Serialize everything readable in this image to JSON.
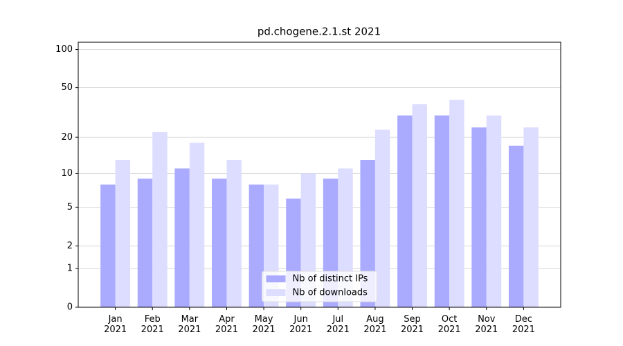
{
  "chart_data": {
    "type": "bar",
    "title": "pd.chogene.2.1.st 2021",
    "categories": [
      "Jan\n2021",
      "Feb\n2021",
      "Mar\n2021",
      "Apr\n2021",
      "May\n2021",
      "Jun\n2021",
      "Jul\n2021",
      "Aug\n2021",
      "Sep\n2021",
      "Oct\n2021",
      "Nov\n2021",
      "Dec\n2021"
    ],
    "series": [
      {
        "name": "Nb of distinct IPs",
        "color": "#aaaaff",
        "values": [
          8,
          9,
          11,
          9,
          8,
          6,
          9,
          13,
          30,
          30,
          24,
          17
        ]
      },
      {
        "name": "Nb of downloads",
        "color": "#ddddff",
        "values": [
          13,
          22,
          18,
          13,
          8,
          10,
          11,
          23,
          37,
          40,
          30,
          24
        ]
      }
    ],
    "yscale": "log1p",
    "ylim": [
      0,
      114
    ],
    "yticks": [
      0,
      1,
      2,
      5,
      10,
      20,
      50,
      100
    ],
    "grid": true,
    "legend": "lower center"
  }
}
